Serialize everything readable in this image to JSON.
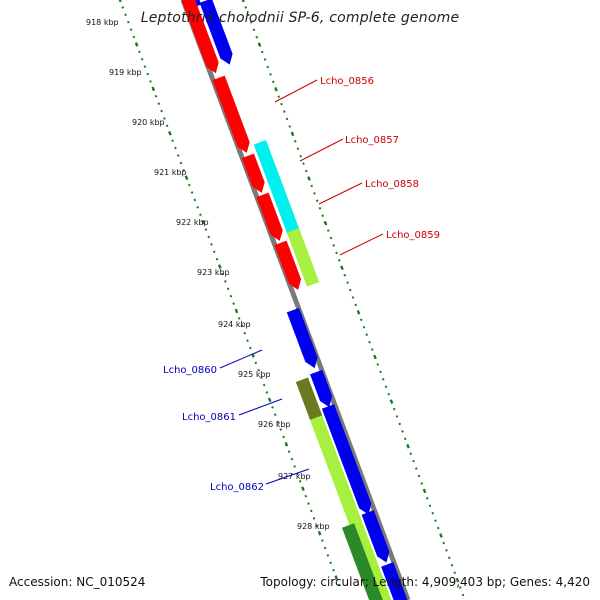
{
  "title": "Leptothrix cholodnii SP-6, complete genome",
  "accession": "Accession: NC_010524",
  "topology": "Topology: circular; Length: 4,909,403 bp; Genes: 4,420",
  "colors": {
    "forward_label": "#cc0000",
    "reverse_label": "#0000bb",
    "tick": "#1a7a1a",
    "backbone": "#808080",
    "red": "#ff0000",
    "blue": "#0000ee",
    "cyan": "#00f0f0",
    "lime": "#a8f040",
    "olive": "#6b7a20",
    "dark_green": "#2a8a2a"
  },
  "ticks": [
    {
      "kbp": 918,
      "label": "918 kbp"
    },
    {
      "kbp": 919,
      "label": "919 kbp"
    },
    {
      "kbp": 920,
      "label": "920 kbp"
    },
    {
      "kbp": 921,
      "label": "921 kbp"
    },
    {
      "kbp": 922,
      "label": "922 kbp"
    },
    {
      "kbp": 923,
      "label": "923 kbp"
    },
    {
      "kbp": 924,
      "label": "924 kbp"
    },
    {
      "kbp": 925,
      "label": "925 kbp"
    },
    {
      "kbp": 926,
      "label": "926 kbp"
    },
    {
      "kbp": 927,
      "label": "927 kbp"
    },
    {
      "kbp": 928,
      "label": "928 kbp"
    }
  ],
  "gene_labels": [
    {
      "text": "Lcho_0856",
      "strand": "forward"
    },
    {
      "text": "Lcho_0857",
      "strand": "forward"
    },
    {
      "text": "Lcho_0858",
      "strand": "forward"
    },
    {
      "text": "Lcho_0859",
      "strand": "forward"
    },
    {
      "text": "Lcho_0860",
      "strand": "reverse"
    },
    {
      "text": "Lcho_0861",
      "strand": "reverse"
    },
    {
      "text": "Lcho_0862",
      "strand": "reverse"
    }
  ]
}
